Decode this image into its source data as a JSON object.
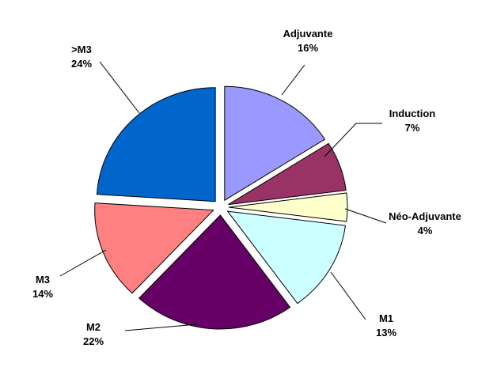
{
  "chart_data": {
    "type": "pie",
    "title": "",
    "unit": "%",
    "slices": [
      {
        "label": "Adjuvante",
        "value": 16,
        "value_text": "16%",
        "color": "#9999FF"
      },
      {
        "label": "Induction",
        "value": 7,
        "value_text": "7%",
        "color": "#993366"
      },
      {
        "label": "Néo-Adjuvante",
        "value": 4,
        "value_text": "4%",
        "color": "#FFFFCC"
      },
      {
        "label": "M1",
        "value": 13,
        "value_text": "13%",
        "color": "#CCFFFF"
      },
      {
        "label": "M2",
        "value": 22,
        "value_text": "22%",
        "color": "#660066"
      },
      {
        "label": "M3",
        "value": 14,
        "value_text": "14%",
        "color": "#FF8080"
      },
      {
        "label": ">M3",
        "value": 24,
        "value_text": "24%",
        "color": "#0066CC"
      }
    ],
    "exploded": true,
    "legend": "none",
    "data_labels": "outside with leader lines"
  }
}
